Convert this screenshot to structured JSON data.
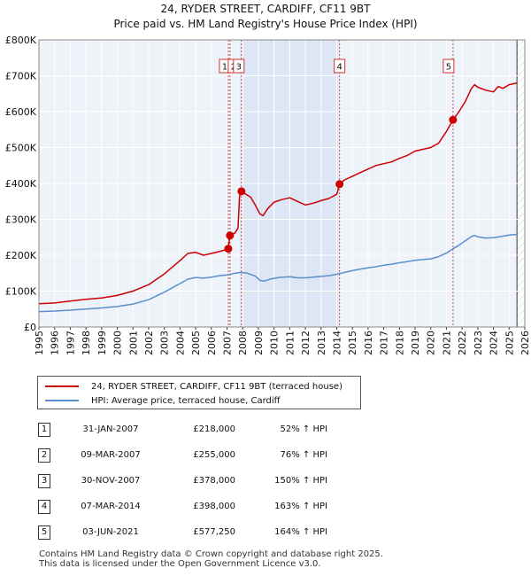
{
  "chart_data": {
    "type": "line",
    "title": "24, RYDER STREET, CARDIFF, CF11 9BT",
    "subtitle": "Price paid vs. HM Land Registry's House Price Index (HPI)",
    "xlabel": "",
    "ylabel": "",
    "xlim": [
      1995,
      2026
    ],
    "ylim": [
      0,
      800000
    ],
    "x_ticks": [
      "1995",
      "1996",
      "1997",
      "1998",
      "1999",
      "2000",
      "2001",
      "2002",
      "2003",
      "2004",
      "2005",
      "2006",
      "2007",
      "2008",
      "2009",
      "2010",
      "2011",
      "2012",
      "2013",
      "2014",
      "2015",
      "2016",
      "2017",
      "2018",
      "2019",
      "2020",
      "2021",
      "2022",
      "2023",
      "2024",
      "2025",
      "2026"
    ],
    "y_ticks": [
      {
        "value": 0,
        "label": "£0"
      },
      {
        "value": 100000,
        "label": "£100K"
      },
      {
        "value": 200000,
        "label": "£200K"
      },
      {
        "value": 300000,
        "label": "£300K"
      },
      {
        "value": 400000,
        "label": "£400K"
      },
      {
        "value": 500000,
        "label": "£500K"
      },
      {
        "value": 600000,
        "label": "£600K"
      },
      {
        "value": 700000,
        "label": "£700K"
      },
      {
        "value": 800000,
        "label": "£800K"
      }
    ],
    "grid": true,
    "shaded_period": [
      2007.83,
      2014.18
    ],
    "forecast_from": 2025.5,
    "series": [
      {
        "name": "24, RYDER STREET, CARDIFF, CF11 9BT (terraced house)",
        "color": "#cc0000",
        "points": [
          [
            1995.0,
            65000
          ],
          [
            1996.0,
            67000
          ],
          [
            1997.0,
            72000
          ],
          [
            1998.0,
            77000
          ],
          [
            1999.0,
            81000
          ],
          [
            2000.0,
            88000
          ],
          [
            2001.0,
            100000
          ],
          [
            2002.0,
            118000
          ],
          [
            2003.0,
            148000
          ],
          [
            2004.0,
            185000
          ],
          [
            2004.5,
            205000
          ],
          [
            2005.0,
            208000
          ],
          [
            2005.5,
            200000
          ],
          [
            2006.0,
            205000
          ],
          [
            2006.5,
            210000
          ],
          [
            2007.0,
            216000
          ],
          [
            2007.08,
            218000
          ],
          [
            2007.12,
            232000
          ],
          [
            2007.19,
            255000
          ],
          [
            2007.5,
            262000
          ],
          [
            2007.7,
            275000
          ],
          [
            2007.8,
            365000
          ],
          [
            2007.92,
            378000
          ],
          [
            2008.2,
            370000
          ],
          [
            2008.5,
            362000
          ],
          [
            2008.8,
            340000
          ],
          [
            2009.1,
            315000
          ],
          [
            2009.3,
            310000
          ],
          [
            2009.6,
            330000
          ],
          [
            2010.0,
            348000
          ],
          [
            2010.5,
            355000
          ],
          [
            2011.0,
            360000
          ],
          [
            2011.5,
            350000
          ],
          [
            2012.0,
            340000
          ],
          [
            2012.5,
            345000
          ],
          [
            2013.0,
            352000
          ],
          [
            2013.5,
            358000
          ],
          [
            2014.0,
            370000
          ],
          [
            2014.18,
            398000
          ],
          [
            2014.5,
            410000
          ],
          [
            2015.0,
            420000
          ],
          [
            2015.5,
            430000
          ],
          [
            2016.0,
            440000
          ],
          [
            2016.5,
            450000
          ],
          [
            2017.0,
            455000
          ],
          [
            2017.5,
            460000
          ],
          [
            2018.0,
            470000
          ],
          [
            2018.5,
            478000
          ],
          [
            2019.0,
            490000
          ],
          [
            2019.5,
            495000
          ],
          [
            2020.0,
            500000
          ],
          [
            2020.5,
            512000
          ],
          [
            2021.0,
            545000
          ],
          [
            2021.42,
            577250
          ],
          [
            2021.8,
            600000
          ],
          [
            2022.2,
            628000
          ],
          [
            2022.6,
            665000
          ],
          [
            2022.8,
            675000
          ],
          [
            2023.0,
            668000
          ],
          [
            2023.5,
            660000
          ],
          [
            2024.0,
            655000
          ],
          [
            2024.3,
            670000
          ],
          [
            2024.6,
            665000
          ],
          [
            2025.0,
            675000
          ],
          [
            2025.5,
            680000
          ]
        ]
      },
      {
        "name": "HPI: Average price, terraced house, Cardiff",
        "color": "#5a8fcc",
        "points": [
          [
            1995.0,
            43000
          ],
          [
            1996.0,
            44500
          ],
          [
            1997.0,
            47000
          ],
          [
            1998.0,
            50000
          ],
          [
            1999.0,
            53000
          ],
          [
            2000.0,
            57000
          ],
          [
            2001.0,
            64000
          ],
          [
            2002.0,
            76000
          ],
          [
            2003.0,
            97000
          ],
          [
            2004.0,
            121000
          ],
          [
            2004.5,
            133000
          ],
          [
            2005.0,
            138000
          ],
          [
            2005.5,
            136000
          ],
          [
            2006.0,
            139000
          ],
          [
            2006.5,
            143000
          ],
          [
            2007.0,
            145000
          ],
          [
            2007.5,
            150000
          ],
          [
            2007.9,
            152000
          ],
          [
            2008.3,
            150000
          ],
          [
            2008.8,
            142000
          ],
          [
            2009.1,
            130000
          ],
          [
            2009.4,
            128000
          ],
          [
            2009.8,
            134000
          ],
          [
            2010.3,
            138000
          ],
          [
            2011.0,
            140000
          ],
          [
            2011.5,
            137000
          ],
          [
            2012.0,
            137000
          ],
          [
            2012.5,
            139000
          ],
          [
            2013.0,
            141000
          ],
          [
            2013.5,
            143000
          ],
          [
            2014.0,
            147000
          ],
          [
            2014.5,
            152000
          ],
          [
            2015.0,
            157000
          ],
          [
            2015.5,
            161000
          ],
          [
            2016.0,
            165000
          ],
          [
            2016.5,
            168000
          ],
          [
            2017.0,
            172000
          ],
          [
            2017.5,
            175000
          ],
          [
            2018.0,
            179000
          ],
          [
            2018.5,
            182000
          ],
          [
            2019.0,
            186000
          ],
          [
            2019.5,
            188000
          ],
          [
            2020.0,
            190000
          ],
          [
            2020.5,
            196000
          ],
          [
            2021.0,
            206000
          ],
          [
            2021.42,
            218000
          ],
          [
            2021.8,
            228000
          ],
          [
            2022.2,
            240000
          ],
          [
            2022.6,
            252000
          ],
          [
            2022.8,
            255000
          ],
          [
            2023.0,
            251000
          ],
          [
            2023.5,
            248000
          ],
          [
            2024.0,
            249000
          ],
          [
            2024.5,
            252000
          ],
          [
            2025.0,
            256000
          ],
          [
            2025.5,
            258000
          ]
        ]
      }
    ],
    "sales": [
      {
        "id": "1",
        "x": 2007.08,
        "y": 218000,
        "date": "31-JAN-2007",
        "price": "£218,000",
        "hpi": "52% ↑ HPI"
      },
      {
        "id": "2",
        "x": 2007.19,
        "y": 255000,
        "date": "09-MAR-2007",
        "price": "£255,000",
        "hpi": "76% ↑ HPI"
      },
      {
        "id": "3",
        "x": 2007.92,
        "y": 378000,
        "date": "30-NOV-2007",
        "price": "£378,000",
        "hpi": "150% ↑ HPI"
      },
      {
        "id": "4",
        "x": 2014.18,
        "y": 398000,
        "date": "07-MAR-2014",
        "price": "£398,000",
        "hpi": "163% ↑ HPI"
      },
      {
        "id": "5",
        "x": 2021.42,
        "y": 577250,
        "date": "03-JUN-2021",
        "price": "£577,250",
        "hpi": "164% ↑ HPI"
      }
    ]
  },
  "legend": {
    "property_label": "24, RYDER STREET, CARDIFF, CF11 9BT (terraced house)",
    "hpi_label": "HPI: Average price, terraced house, Cardiff"
  },
  "footer": {
    "line1": "Contains HM Land Registry data © Crown copyright and database right 2025.",
    "line2": "This data is licensed under the Open Government Licence v3.0."
  }
}
